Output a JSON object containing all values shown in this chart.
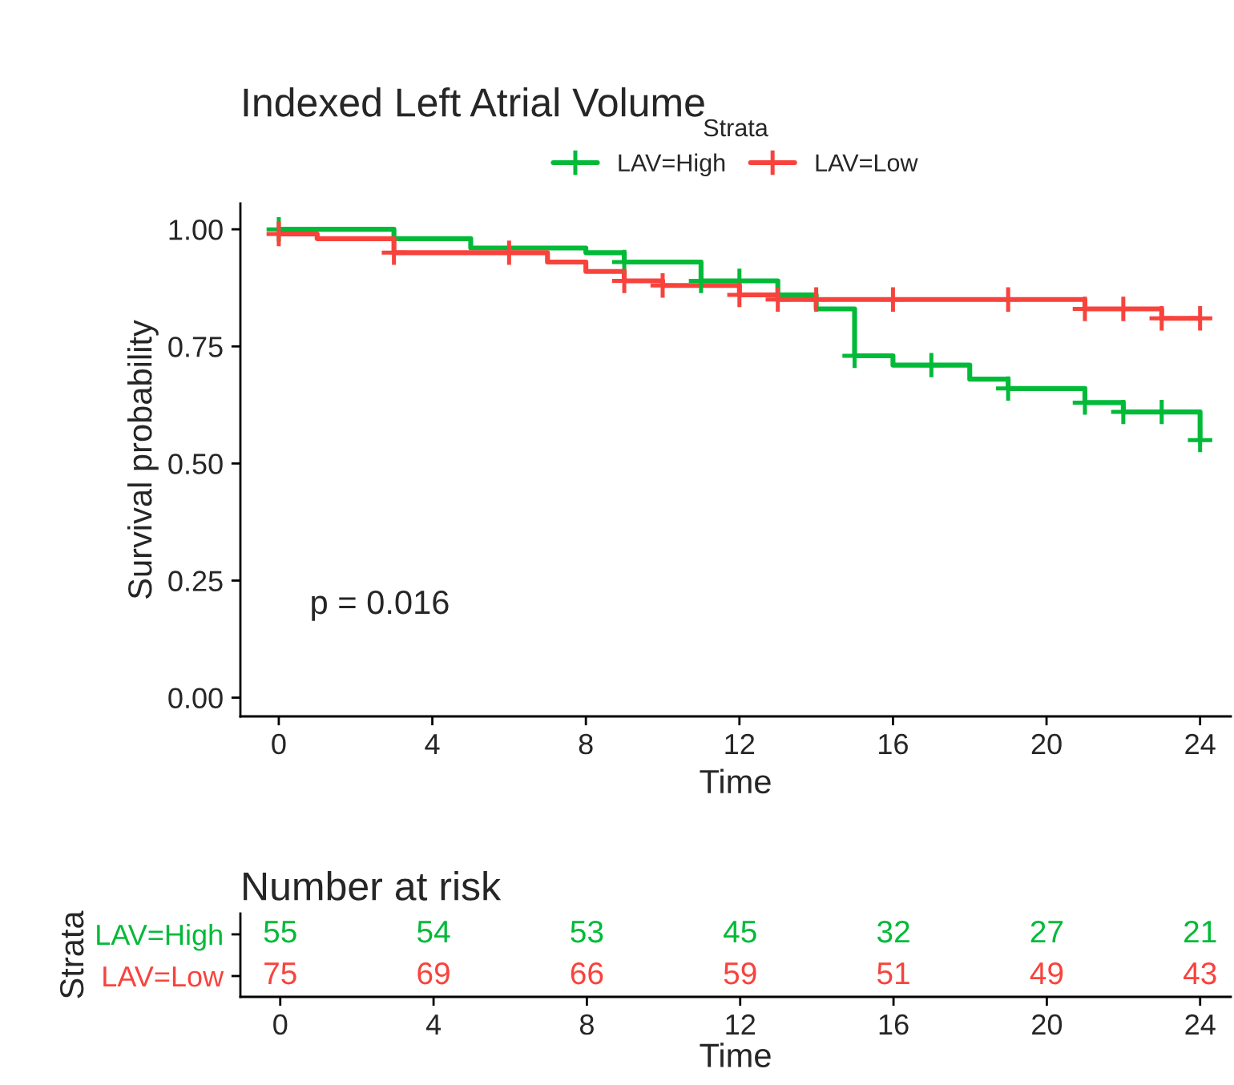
{
  "chart_data": [
    {
      "type": "step",
      "title": "Indexed Left Atrial Volume",
      "xlabel": "Time",
      "ylabel": "Survival probability",
      "legend_title": "Strata",
      "legend": "top",
      "xlim": [
        -1,
        24.8
      ],
      "xticks": [
        0,
        4,
        8,
        12,
        16,
        20,
        24
      ],
      "ylim": [
        -0.04,
        1.055
      ],
      "yticks": [
        {
          "value": 0,
          "label": "0.00"
        },
        {
          "value": 0.25,
          "label": "0.25"
        },
        {
          "value": 0.5,
          "label": "0.50"
        },
        {
          "value": 0.75,
          "label": "0.75"
        },
        {
          "value": 1,
          "label": "1.00"
        }
      ],
      "grid": false,
      "annotations": [
        "p = 0.016"
      ],
      "series": [
        {
          "name": "LAV=High",
          "color": "#00ba38",
          "x": [
            0,
            3,
            5,
            8,
            9,
            11,
            13,
            14,
            15,
            16,
            18,
            19,
            21,
            22,
            24
          ],
          "values": [
            1.0,
            0.98,
            0.96,
            0.95,
            0.93,
            0.89,
            0.86,
            0.83,
            0.73,
            0.71,
            0.68,
            0.66,
            0.63,
            0.61,
            0.55
          ]
        },
        {
          "name": "LAV=Low",
          "color": "#f8433d",
          "x": [
            0,
            1,
            3,
            7,
            8,
            9,
            10,
            12,
            13,
            21,
            23,
            24
          ],
          "values": [
            0.99,
            0.98,
            0.95,
            0.93,
            0.91,
            0.89,
            0.88,
            0.86,
            0.85,
            0.83,
            0.81,
            0.81
          ]
        },
        {
          "type": "scatter",
          "marker": "cross",
          "color": "#00ba38",
          "x": [
            0,
            9,
            11,
            12,
            15,
            17,
            19,
            21,
            22,
            23,
            24
          ],
          "values": [
            1.0,
            0.93,
            0.89,
            0.89,
            0.73,
            0.71,
            0.66,
            0.63,
            0.61,
            0.61,
            0.55
          ]
        },
        {
          "type": "scatter",
          "marker": "cross",
          "color": "#f8433d",
          "x": [
            0,
            3,
            6,
            9,
            10,
            12,
            13,
            14,
            16,
            19,
            21,
            22,
            23,
            24
          ],
          "values": [
            0.99,
            0.95,
            0.95,
            0.89,
            0.88,
            0.86,
            0.85,
            0.85,
            0.85,
            0.85,
            0.83,
            0.83,
            0.81,
            0.81
          ]
        }
      ]
    },
    {
      "type": "heatmap",
      "title": "Number at risk",
      "xlabel": "Time",
      "ylabel": "Strata",
      "data_labels": true,
      "categories": [
        "0",
        "4",
        "8",
        "12",
        "16",
        "20",
        "24"
      ],
      "y_categories": [
        "LAV=High",
        "LAV=Low"
      ],
      "colors": [
        "#00ba38",
        "#f8433d"
      ],
      "cells": [
        [
          55,
          54,
          53,
          45,
          32,
          27,
          21
        ],
        [
          75,
          69,
          66,
          59,
          51,
          49,
          43
        ]
      ]
    }
  ]
}
